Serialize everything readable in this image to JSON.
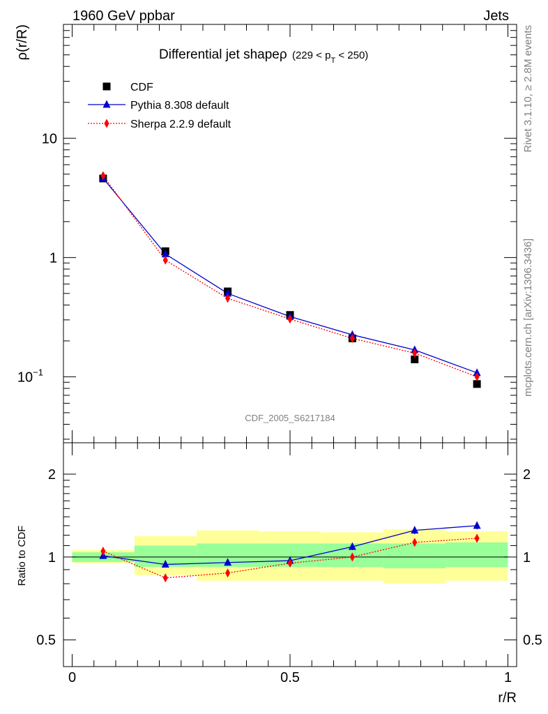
{
  "header": {
    "left": "1960 GeV ppbar",
    "right": "Jets"
  },
  "side": {
    "rivet": "Rivet 3.1.10, ≥ 2.8M events",
    "mcplots": "mcplots.cern.ch [arXiv:1306.3436]"
  },
  "chart_data": [
    {
      "type": "scatter",
      "title_main": "Differential jet shapeρ",
      "title_cut_pre": "(229 < p",
      "title_cut_sub": "T",
      "title_cut_post": " < 250)",
      "ylabel": "ρ(r/R)",
      "watermark": "CDF_2005_S6217184",
      "yscale": "log",
      "xlim": [
        -0.02,
        1.02
      ],
      "ylim": [
        0.028,
        90
      ],
      "yticks": [
        {
          "v": 10,
          "label": "10",
          "exp": ""
        },
        {
          "v": 1,
          "label": "1",
          "exp": ""
        },
        {
          "v": 0.1,
          "label": "10",
          "exp": "−1"
        }
      ],
      "legend_position": "top-left",
      "series": [
        {
          "name": "CDF",
          "color": "#000000",
          "marker": "square",
          "line": "none",
          "x": [
            0.071,
            0.214,
            0.357,
            0.5,
            0.643,
            0.786,
            0.929
          ],
          "y": [
            4.6,
            1.13,
            0.52,
            0.33,
            0.21,
            0.14,
            0.087
          ]
        },
        {
          "name": "Pythia 8.308 default",
          "color": "#0000cc",
          "marker": "triangle",
          "line": "solid",
          "x": [
            0.071,
            0.214,
            0.357,
            0.5,
            0.643,
            0.786,
            0.929
          ],
          "y": [
            4.62,
            1.07,
            0.5,
            0.32,
            0.225,
            0.168,
            0.108
          ]
        },
        {
          "name": "Sherpa 2.2.9 default",
          "color": "#ff0000",
          "marker": "diamond",
          "line": "dotted",
          "x": [
            0.071,
            0.214,
            0.357,
            0.5,
            0.643,
            0.786,
            0.929
          ],
          "y": [
            4.85,
            0.95,
            0.455,
            0.305,
            0.21,
            0.158,
            0.1
          ]
        }
      ]
    },
    {
      "type": "scatter",
      "ylabel": "Ratio to CDF",
      "xlabel": "r/R",
      "yscale": "log",
      "xlim": [
        -0.02,
        1.02
      ],
      "ylim": [
        0.4,
        2.6
      ],
      "yticks": [
        {
          "v": 2,
          "label": "2"
        },
        {
          "v": 1,
          "label": "1"
        },
        {
          "v": 0.5,
          "label": "0.5"
        }
      ],
      "xticks": [
        {
          "v": 0,
          "label": "0"
        },
        {
          "v": 0.5,
          "label": "0.5"
        },
        {
          "v": 1,
          "label": "1"
        }
      ],
      "bands": [
        {
          "x0": 0.0,
          "x1": 0.143,
          "green": [
            0.96,
            1.04
          ],
          "yellow": [
            0.95,
            1.06
          ]
        },
        {
          "x0": 0.143,
          "x1": 0.286,
          "green": [
            0.92,
            1.1
          ],
          "yellow": [
            0.86,
            1.19
          ]
        },
        {
          "x0": 0.286,
          "x1": 0.429,
          "green": [
            0.92,
            1.12
          ],
          "yellow": [
            0.82,
            1.25
          ]
        },
        {
          "x0": 0.429,
          "x1": 0.571,
          "green": [
            0.92,
            1.12
          ],
          "yellow": [
            0.82,
            1.24
          ]
        },
        {
          "x0": 0.571,
          "x1": 0.714,
          "green": [
            0.92,
            1.12
          ],
          "yellow": [
            0.82,
            1.23
          ]
        },
        {
          "x0": 0.714,
          "x1": 0.857,
          "green": [
            0.91,
            1.12
          ],
          "yellow": [
            0.8,
            1.26
          ]
        },
        {
          "x0": 0.857,
          "x1": 1.0,
          "green": [
            0.92,
            1.13
          ],
          "yellow": [
            0.82,
            1.24
          ]
        }
      ],
      "series": [
        {
          "name": "Pythia 8.308 default",
          "color": "#0000cc",
          "marker": "triangle",
          "line": "solid",
          "x": [
            0.071,
            0.214,
            0.357,
            0.5,
            0.643,
            0.786,
            0.929
          ],
          "y": [
            1.01,
            0.94,
            0.955,
            0.97,
            1.09,
            1.25,
            1.3
          ],
          "err": [
            0.02,
            0.01,
            0.01,
            0.02,
            0.03,
            0.04,
            0.04
          ]
        },
        {
          "name": "Sherpa 2.2.9 default",
          "color": "#ff0000",
          "marker": "diamond",
          "line": "dotted",
          "x": [
            0.071,
            0.214,
            0.357,
            0.5,
            0.643,
            0.786,
            0.929
          ],
          "y": [
            1.05,
            0.84,
            0.875,
            0.95,
            1.0,
            1.13,
            1.17
          ],
          "err": [
            0.01,
            0.01,
            0.01,
            0.02,
            0.03,
            0.03,
            0.04
          ]
        }
      ]
    }
  ]
}
